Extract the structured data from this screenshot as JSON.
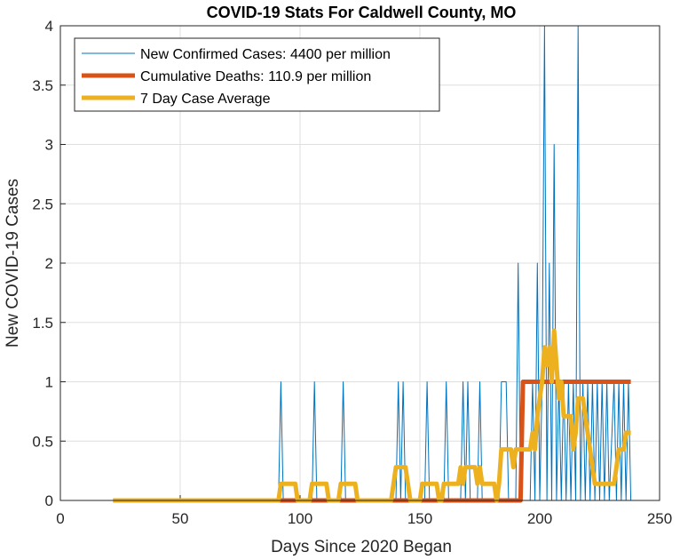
{
  "chart_data": {
    "type": "line",
    "title": "COVID-19 Stats For Caldwell County, MO",
    "xlabel": "Days Since 2020 Began",
    "ylabel": "New COVID-19 Cases",
    "xlim": [
      0,
      250
    ],
    "ylim": [
      0,
      4
    ],
    "xticks": [
      0,
      50,
      100,
      150,
      200,
      250
    ],
    "yticks": [
      0,
      0.5,
      1,
      1.5,
      2,
      2.5,
      3,
      3.5,
      4
    ],
    "grid": true,
    "legend_position": "top-left",
    "series": [
      {
        "name": "New Confirmed Cases: 4400 per million",
        "color": "#0072BD",
        "line": "thin",
        "points": [
          [
            22,
            0
          ],
          [
            91,
            0
          ],
          [
            92,
            1
          ],
          [
            93,
            0
          ],
          [
            105,
            0
          ],
          [
            106,
            1
          ],
          [
            107,
            0
          ],
          [
            117,
            0
          ],
          [
            118,
            1
          ],
          [
            119,
            0
          ],
          [
            140,
            0
          ],
          [
            141,
            1
          ],
          [
            142,
            0
          ],
          [
            143,
            1
          ],
          [
            144,
            0
          ],
          [
            152,
            0
          ],
          [
            153,
            1
          ],
          [
            154,
            0
          ],
          [
            160,
            0
          ],
          [
            161,
            1
          ],
          [
            162,
            0
          ],
          [
            167,
            0
          ],
          [
            168,
            1
          ],
          [
            169,
            0
          ],
          [
            170,
            1
          ],
          [
            171,
            0
          ],
          [
            174,
            0
          ],
          [
            175,
            1
          ],
          [
            176,
            0
          ],
          [
            183,
            0
          ],
          [
            184,
            1
          ],
          [
            186,
            1
          ],
          [
            187,
            0
          ],
          [
            190,
            0
          ],
          [
            191,
            2
          ],
          [
            192,
            0
          ],
          [
            196,
            0
          ],
          [
            197,
            1
          ],
          [
            198,
            0
          ],
          [
            199,
            2
          ],
          [
            200,
            0
          ],
          [
            201,
            1
          ],
          [
            202,
            4
          ],
          [
            203,
            0
          ],
          [
            204,
            2
          ],
          [
            205,
            0
          ],
          [
            206,
            3
          ],
          [
            207,
            0
          ],
          [
            208,
            1
          ],
          [
            209,
            0
          ],
          [
            210,
            1
          ],
          [
            211,
            0
          ],
          [
            212,
            1
          ],
          [
            213,
            0
          ],
          [
            214,
            1
          ],
          [
            215,
            0
          ],
          [
            216,
            4
          ],
          [
            217,
            0
          ],
          [
            218,
            1
          ],
          [
            219,
            0
          ],
          [
            220,
            1
          ],
          [
            221,
            0
          ],
          [
            222,
            1
          ],
          [
            223,
            0
          ],
          [
            224,
            1
          ],
          [
            225,
            0
          ],
          [
            226,
            1
          ],
          [
            227,
            0
          ],
          [
            228,
            1
          ],
          [
            229,
            0
          ],
          [
            231,
            1
          ],
          [
            232,
            0
          ],
          [
            233,
            1
          ],
          [
            234,
            0
          ],
          [
            235,
            1
          ],
          [
            236,
            0
          ],
          [
            237,
            1
          ],
          [
            238,
            0
          ]
        ]
      },
      {
        "name": "Cumulative Deaths: 110.9 per million",
        "color": "#D95319",
        "line": "thick",
        "points": [
          [
            22,
            0
          ],
          [
            192,
            0
          ],
          [
            193,
            1
          ],
          [
            238,
            1
          ]
        ]
      },
      {
        "name": "7 Day Case Average",
        "color": "#EDB120",
        "line": "thick",
        "points": [
          [
            22,
            0
          ],
          [
            91,
            0
          ],
          [
            92,
            0.14
          ],
          [
            98,
            0.14
          ],
          [
            99,
            0
          ],
          [
            104,
            0
          ],
          [
            105,
            0.14
          ],
          [
            111,
            0.14
          ],
          [
            112,
            0
          ],
          [
            116,
            0
          ],
          [
            117,
            0.14
          ],
          [
            123,
            0.14
          ],
          [
            124,
            0
          ],
          [
            138,
            0
          ],
          [
            139,
            0.14
          ],
          [
            140,
            0.28
          ],
          [
            144,
            0.28
          ],
          [
            145,
            0.14
          ],
          [
            146,
            0
          ],
          [
            150,
            0
          ],
          [
            151,
            0.14
          ],
          [
            157,
            0.14
          ],
          [
            158,
            0
          ],
          [
            159,
            0
          ],
          [
            160,
            0.14
          ],
          [
            166,
            0.14
          ],
          [
            167,
            0.28
          ],
          [
            168,
            0.14
          ],
          [
            169,
            0.28
          ],
          [
            173,
            0.28
          ],
          [
            174,
            0.14
          ],
          [
            175,
            0.28
          ],
          [
            176,
            0.14
          ],
          [
            181,
            0.14
          ],
          [
            182,
            0
          ],
          [
            183,
            0.14
          ],
          [
            184,
            0.43
          ],
          [
            188,
            0.43
          ],
          [
            189,
            0.28
          ],
          [
            190,
            0.43
          ],
          [
            196,
            0.43
          ],
          [
            197,
            0.57
          ],
          [
            198,
            0.43
          ],
          [
            199,
            0.71
          ],
          [
            200,
            0.86
          ],
          [
            201,
            1.0
          ],
          [
            202,
            1.29
          ],
          [
            203,
            1.14
          ],
          [
            204,
            1.29
          ],
          [
            205,
            1.0
          ],
          [
            206,
            1.43
          ],
          [
            207,
            1.14
          ],
          [
            208,
            0.86
          ],
          [
            209,
            1.0
          ],
          [
            210,
            0.71
          ],
          [
            213,
            0.71
          ],
          [
            214,
            0.43
          ],
          [
            215,
            0.57
          ],
          [
            216,
            0.86
          ],
          [
            218,
            0.86
          ],
          [
            219,
            0.71
          ],
          [
            220,
            0.57
          ],
          [
            221,
            0.43
          ],
          [
            222,
            0.28
          ],
          [
            223,
            0.14
          ],
          [
            231,
            0.14
          ],
          [
            232,
            0.28
          ],
          [
            233,
            0.43
          ],
          [
            235,
            0.43
          ],
          [
            236,
            0.57
          ],
          [
            238,
            0.57
          ]
        ]
      }
    ]
  }
}
